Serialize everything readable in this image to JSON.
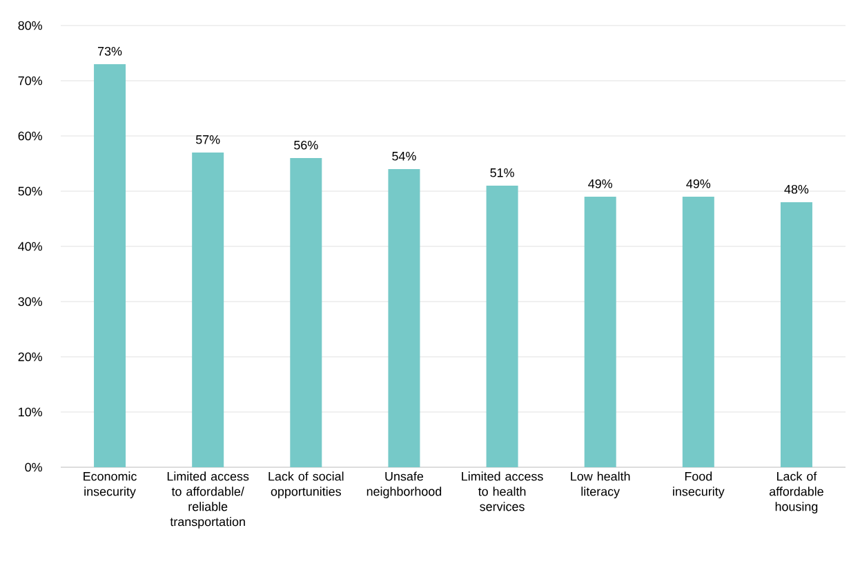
{
  "chart_data": {
    "type": "bar",
    "categories": [
      "Economic insecurity",
      "Limited access to affordable/ reliable transportation",
      "Lack of social opportunities",
      "Unsafe neighborhood",
      "Limited access to health services",
      "Low health literacy",
      "Food insecurity",
      "Lack of affordable housing"
    ],
    "values": [
      73,
      57,
      56,
      54,
      51,
      49,
      49,
      48
    ],
    "value_labels": [
      "73%",
      "57%",
      "56%",
      "54%",
      "51%",
      "49%",
      "49%",
      "48%"
    ],
    "color": "#76c9c8",
    "ylim": [
      0,
      80
    ],
    "yticks": [
      {
        "value": 0,
        "label": "0%"
      },
      {
        "value": 10,
        "label": "10%"
      },
      {
        "value": 20,
        "label": "20%"
      },
      {
        "value": 30,
        "label": "30%"
      },
      {
        "value": 40,
        "label": "40%"
      },
      {
        "value": 50,
        "label": "50%"
      },
      {
        "value": 60,
        "label": "60%"
      },
      {
        "value": 70,
        "label": "70%"
      },
      {
        "value": 80,
        "label": "80%"
      }
    ],
    "grid": "y"
  }
}
